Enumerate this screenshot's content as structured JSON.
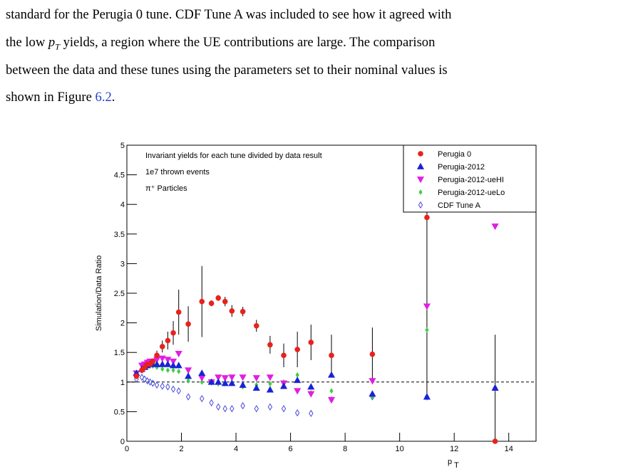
{
  "text": {
    "line1": "standard for the Perugia 0 tune. CDF Tune A was included to see how it agreed with",
    "line2_before": "the low",
    "line2_math": "p",
    "line2_sub": "T",
    "line2_after": "yields, a region where the UE contributions are large. The comparison",
    "line3": "between the data and these tunes using the parameters set to their nominal values is",
    "line4_before": "shown in Figure",
    "line4_ref": "6.2",
    "line4_after": "."
  },
  "chart_data": {
    "type": "scatter",
    "ylabel": "Simulation/Data Ratio",
    "xlabel": "p",
    "xlabel_sub": "T",
    "annotations": [
      "Invariant yields for each tune divided by data result",
      "1e7 thrown events",
      "π⁺ Particles"
    ],
    "xlim": [
      0,
      15
    ],
    "ylim": [
      0,
      5
    ],
    "xticks": [
      0,
      2,
      4,
      6,
      8,
      10,
      12,
      14
    ],
    "yticks": [
      0,
      0.5,
      1,
      1.5,
      2,
      2.5,
      3,
      3.5,
      4,
      4.5,
      5
    ],
    "reference_line": 1,
    "legend": "upper right",
    "x": [
      0.35,
      0.55,
      0.65,
      0.75,
      0.85,
      0.95,
      1.1,
      1.3,
      1.5,
      1.7,
      1.9,
      2.25,
      2.75,
      3.1,
      3.35,
      3.6,
      3.85,
      4.25,
      4.75,
      5.25,
      5.75,
      6.25,
      6.75,
      7.5,
      9.0,
      11.0,
      13.5
    ],
    "series": [
      {
        "name": "Perugia 0",
        "color": "#e8221b",
        "marker": "circle",
        "values": [
          1.1,
          1.2,
          1.25,
          1.3,
          1.3,
          1.35,
          1.45,
          1.6,
          1.7,
          1.83,
          2.18,
          1.98,
          2.36,
          2.33,
          2.42,
          2.36,
          2.2,
          2.19,
          1.95,
          1.63,
          1.45,
          1.55,
          1.67,
          1.45,
          1.47,
          3.78,
          0.0
        ],
        "errors": [
          0.05,
          0.05,
          0.05,
          0.05,
          0.05,
          0.05,
          0.08,
          0.1,
          0.15,
          0.2,
          0.38,
          0.3,
          0.6,
          0.05,
          0.05,
          0.08,
          0.1,
          0.08,
          0.1,
          0.15,
          0.2,
          0.3,
          0.3,
          0.35,
          0.45,
          3.0,
          1.8
        ]
      },
      {
        "name": "Perugia-2012",
        "color": "#1a22d6",
        "marker": "triangle-up",
        "values": [
          1.15,
          1.22,
          1.25,
          1.28,
          1.3,
          1.3,
          1.3,
          1.3,
          1.3,
          1.28,
          1.28,
          1.1,
          1.15,
          1.0,
          1.0,
          0.98,
          0.98,
          0.95,
          0.9,
          0.87,
          0.93,
          1.03,
          0.92,
          1.12,
          0.8,
          0.75,
          0.9
        ]
      },
      {
        "name": "Perugia-2012-ueHI",
        "color": "#e21ee2",
        "marker": "triangle-down",
        "values": [
          1.15,
          1.28,
          1.3,
          1.33,
          1.35,
          1.35,
          1.38,
          1.4,
          1.38,
          1.35,
          1.48,
          1.2,
          1.07,
          1.0,
          1.08,
          1.07,
          1.08,
          1.08,
          1.07,
          1.08,
          0.98,
          0.85,
          0.8,
          0.7,
          1.02,
          2.28,
          3.63
        ]
      },
      {
        "name": "Perugia-2012-ueLo",
        "color": "#3fcf3f",
        "marker": "diamond",
        "values": [
          1.12,
          1.22,
          1.25,
          1.25,
          1.28,
          1.27,
          1.25,
          1.22,
          1.2,
          1.2,
          1.18,
          1.02,
          1.0,
          1.0,
          0.97,
          0.97,
          0.98,
          0.92,
          0.95,
          0.97,
          1.0,
          1.12,
          0.82,
          0.85,
          0.75,
          1.88,
          0.9
        ]
      },
      {
        "name": "CDF Tune A",
        "color": "#4a4ad8",
        "marker": "open-diamond",
        "values": [
          1.05,
          1.08,
          1.05,
          1.02,
          1.0,
          0.98,
          0.95,
          0.93,
          0.92,
          0.88,
          0.85,
          0.75,
          0.72,
          0.65,
          0.58,
          0.55,
          0.55,
          0.6,
          0.55,
          0.58,
          0.55,
          0.48,
          0.47,
          0.7,
          0.75,
          0.75,
          0.9
        ]
      }
    ]
  }
}
